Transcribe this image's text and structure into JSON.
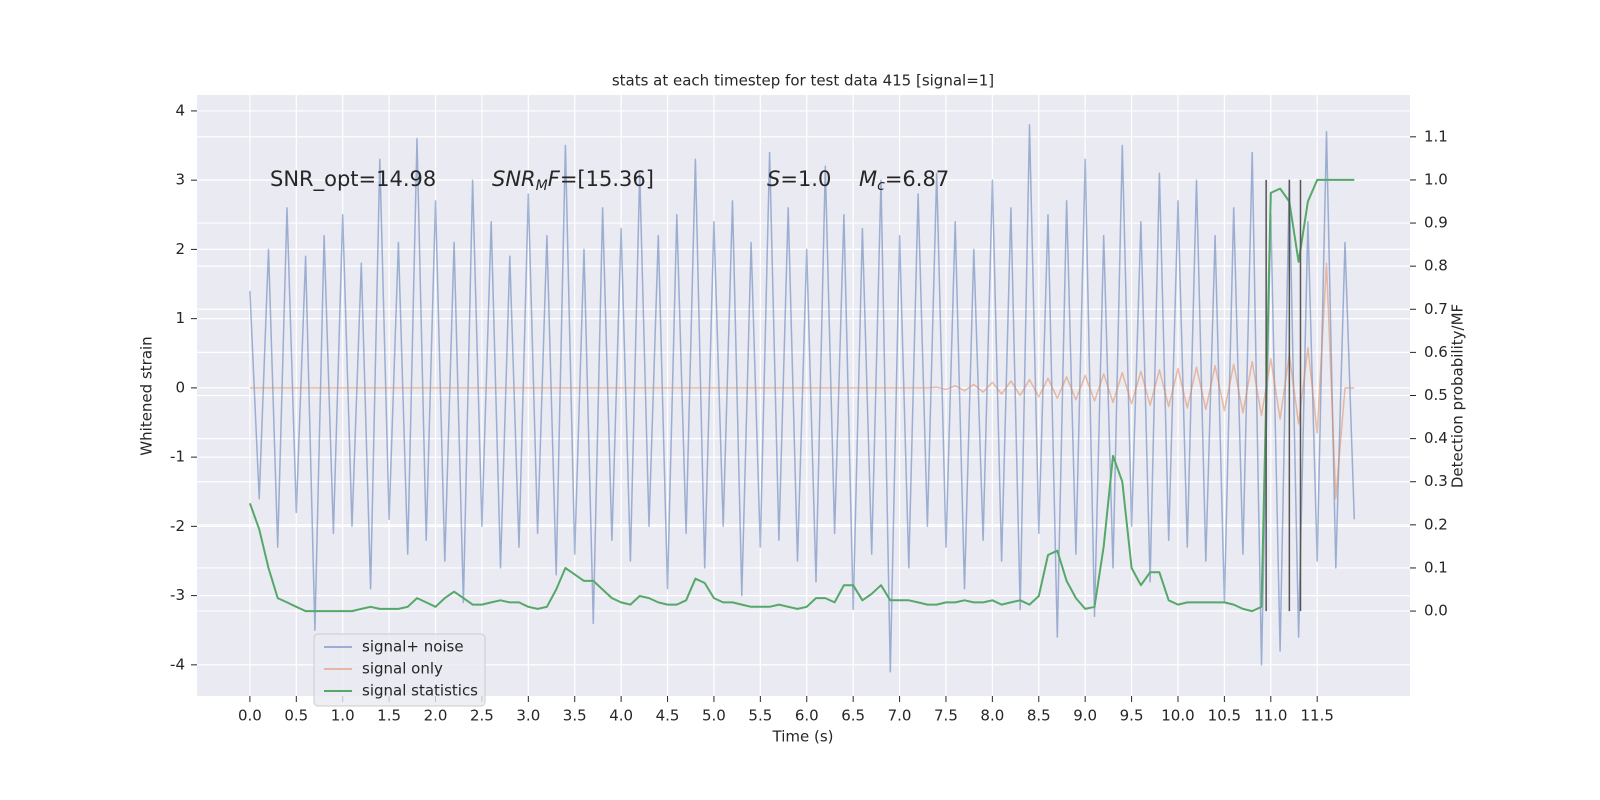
{
  "chart_data": {
    "type": "line",
    "title": "stats at each timestep for test data 415 [signal=1]",
    "x_label": "Time (s)",
    "y_label": "Whitened strain",
    "y2_label": "Detection probability/MF",
    "annotations": [
      [
        [
          "SNR_opt=14.98",
          ""
        ]
      ],
      [
        [
          "SNR",
          "i"
        ],
        [
          "M",
          "sub"
        ],
        [
          "F",
          "i"
        ],
        [
          "=[15.36]",
          ""
        ]
      ],
      [
        [
          "S",
          "i"
        ],
        [
          "=1.0",
          ""
        ]
      ],
      [
        [
          "M",
          "i"
        ],
        [
          "c",
          "sub"
        ],
        [
          "=6.87",
          ""
        ]
      ]
    ],
    "x": [
      0,
      0.1,
      0.2,
      0.3,
      0.4,
      0.5,
      0.6,
      0.7,
      0.8,
      0.9,
      1,
      1.1,
      1.2,
      1.3,
      1.4,
      1.5,
      1.6,
      1.7,
      1.8,
      1.9,
      2,
      2.1,
      2.2,
      2.3,
      2.4,
      2.5,
      2.6,
      2.7,
      2.8,
      2.9,
      3,
      3.1,
      3.2,
      3.3,
      3.4,
      3.5,
      3.6,
      3.7,
      3.8,
      3.9,
      4,
      4.1,
      4.2,
      4.3,
      4.4,
      4.5,
      4.6,
      4.7,
      4.8,
      4.9,
      5,
      5.1,
      5.2,
      5.3,
      5.4,
      5.5,
      5.6,
      5.7,
      5.8,
      5.9,
      6,
      6.1,
      6.2,
      6.3,
      6.4,
      6.5,
      6.6,
      6.7,
      6.8,
      6.9,
      7,
      7.1,
      7.2,
      7.3,
      7.4,
      7.5,
      7.6,
      7.7,
      7.8,
      7.9,
      8,
      8.1,
      8.2,
      8.3,
      8.4,
      8.5,
      8.6,
      8.7,
      8.8,
      8.9,
      9,
      9.1,
      9.2,
      9.3,
      9.4,
      9.5,
      9.6,
      9.7,
      9.8,
      9.9,
      10,
      10.1,
      10.2,
      10.3,
      10.4,
      10.5,
      10.6,
      10.7,
      10.8,
      10.9,
      11,
      11.1,
      11.2,
      11.3,
      11.4,
      11.5,
      11.6,
      11.7,
      11.8,
      11.9
    ],
    "series": [
      {
        "name": "signal+ noise",
        "color": "#4c72b0",
        "opacity": 0.5,
        "axis": "y",
        "values": [
          1.4,
          -1.6,
          2.0,
          -2.3,
          2.6,
          -1.8,
          1.9,
          -3.5,
          2.2,
          -2.1,
          2.5,
          -2.0,
          1.8,
          -2.9,
          3.3,
          -1.9,
          2.1,
          -2.4,
          3.6,
          -2.2,
          2.7,
          -2.5,
          2.1,
          -3.1,
          3.0,
          -2.0,
          2.4,
          -2.6,
          1.9,
          -2.3,
          2.8,
          -2.1,
          2.2,
          -2.7,
          3.5,
          -2.4,
          2.0,
          -3.4,
          2.6,
          -2.2,
          2.3,
          -2.5,
          3.1,
          -2.0,
          2.2,
          -2.9,
          2.5,
          -2.1,
          3.3,
          -2.6,
          2.4,
          -2.0,
          2.7,
          -3.0,
          2.1,
          -2.3,
          3.4,
          -2.2,
          2.6,
          -2.5,
          2.0,
          -2.8,
          3.2,
          -2.1,
          2.5,
          -3.2,
          2.3,
          -2.4,
          3.0,
          -4.1,
          2.2,
          -2.6,
          2.8,
          -2.0,
          3.1,
          -2.3,
          2.4,
          -2.9,
          2.0,
          -2.2,
          3.0,
          -2.5,
          2.6,
          -3.2,
          3.8,
          -2.1,
          2.5,
          -3.6,
          2.7,
          -2.4,
          3.3,
          -3.3,
          2.2,
          -2.6,
          3.5,
          -2.0,
          2.4,
          -2.8,
          3.1,
          -2.2,
          2.7,
          -2.3,
          3.0,
          -2.5,
          2.2,
          -3.1,
          2.6,
          -2.4,
          3.4,
          -4.0,
          2.5,
          -3.8,
          3.0,
          -3.6,
          2.4,
          -2.5,
          3.7,
          -2.6,
          2.1,
          -1.9
        ]
      },
      {
        "name": "signal only",
        "color": "#dd8452",
        "opacity": 0.5,
        "axis": "y",
        "values": [
          0,
          0,
          0,
          0,
          0,
          0,
          0,
          0,
          0,
          0,
          0,
          0,
          0,
          0,
          0,
          0,
          0,
          0,
          0,
          0,
          0,
          0,
          0,
          0,
          0,
          0,
          0,
          0,
          0,
          0,
          0,
          0,
          0,
          0,
          0,
          0,
          0,
          0,
          0,
          0,
          0,
          0,
          0,
          0,
          0,
          0,
          0,
          0,
          0,
          0,
          0,
          0,
          0,
          0,
          0,
          0,
          0,
          0,
          0,
          0,
          0,
          0,
          0,
          0,
          0,
          0,
          0,
          0,
          0,
          0,
          0,
          0,
          0,
          0,
          0.01,
          -0.02,
          0.03,
          -0.04,
          0.05,
          -0.06,
          0.08,
          -0.09,
          0.1,
          -0.11,
          0.12,
          -0.13,
          0.14,
          -0.15,
          0.16,
          -0.17,
          0.18,
          -0.19,
          0.2,
          -0.21,
          0.22,
          -0.23,
          0.24,
          -0.25,
          0.26,
          -0.27,
          0.28,
          -0.29,
          0.3,
          -0.31,
          0.32,
          -0.33,
          0.34,
          -0.36,
          0.38,
          -0.4,
          0.42,
          -0.45,
          0.48,
          -0.52,
          0.58,
          -0.65,
          1.8,
          -1.6,
          0,
          0
        ]
      },
      {
        "name": "signal statistics",
        "color": "#55a868",
        "opacity": 1,
        "axis": "y2",
        "values": [
          0.25,
          0.19,
          0.1,
          0.03,
          0.02,
          0.01,
          0,
          0,
          0,
          0,
          0,
          0,
          0.005,
          0.01,
          0.005,
          0.005,
          0.005,
          0.01,
          0.03,
          0.02,
          0.01,
          0.03,
          0.045,
          0.03,
          0.015,
          0.015,
          0.02,
          0.025,
          0.02,
          0.02,
          0.01,
          0.005,
          0.01,
          0.05,
          0.1,
          0.085,
          0.07,
          0.07,
          0.05,
          0.03,
          0.02,
          0.015,
          0.035,
          0.03,
          0.02,
          0.015,
          0.015,
          0.025,
          0.075,
          0.065,
          0.03,
          0.02,
          0.02,
          0.015,
          0.01,
          0.01,
          0.01,
          0.015,
          0.01,
          0.005,
          0.01,
          0.03,
          0.03,
          0.02,
          0.06,
          0.06,
          0.025,
          0.04,
          0.06,
          0.025,
          0.025,
          0.025,
          0.02,
          0.015,
          0.015,
          0.02,
          0.02,
          0.025,
          0.02,
          0.02,
          0.025,
          0.015,
          0.02,
          0.025,
          0.015,
          0.035,
          0.13,
          0.14,
          0.07,
          0.03,
          0.005,
          0.01,
          0.15,
          0.36,
          0.3,
          0.1,
          0.06,
          0.09,
          0.09,
          0.025,
          0.015,
          0.02,
          0.02,
          0.02,
          0.02,
          0.02,
          0.015,
          0.005,
          0,
          0.01,
          0.97,
          0.98,
          0.95,
          0.81,
          0.95,
          1,
          1,
          1,
          1,
          1
        ]
      }
    ],
    "vlines": [
      10.95,
      11.2,
      11.32
    ],
    "vline_range": [
      0,
      1
    ],
    "vline_color": "#555555",
    "xlim": [
      -0.57,
      12.5
    ],
    "ylim": [
      -4.45,
      4.23
    ],
    "y2lim": [
      -0.197,
      1.197
    ],
    "xticks": [
      {
        "value": 0,
        "label": "0.0"
      },
      0.5,
      {
        "value": 1,
        "label": "1.0"
      },
      1.5,
      {
        "value": 2,
        "label": "2.0"
      },
      2.5,
      {
        "value": 3,
        "label": "3.0"
      },
      3.5,
      {
        "value": 4,
        "label": "4.0"
      },
      4.5,
      {
        "value": 5,
        "label": "5.0"
      },
      5.5,
      {
        "value": 6,
        "label": "6.0"
      },
      6.5,
      {
        "value": 7,
        "label": "7.0"
      },
      7.5,
      {
        "value": 8,
        "label": "8.0"
      },
      8.5,
      {
        "value": 9,
        "label": "9.0"
      },
      9.5,
      {
        "value": 10,
        "label": "10.0"
      },
      10.5,
      {
        "value": 11,
        "label": "11.0"
      },
      11.5
    ],
    "yticks": [
      -4,
      -3,
      -2,
      -1,
      0,
      1,
      2,
      3,
      4
    ],
    "y2ticks": [
      {
        "value": 0,
        "label": "0.0"
      },
      0.1,
      0.2,
      0.3,
      0.4,
      0.5,
      0.6,
      0.7,
      0.8,
      0.9,
      {
        "value": 1,
        "label": "1.0"
      },
      1.1
    ],
    "grid": true,
    "legend": "lower left"
  }
}
